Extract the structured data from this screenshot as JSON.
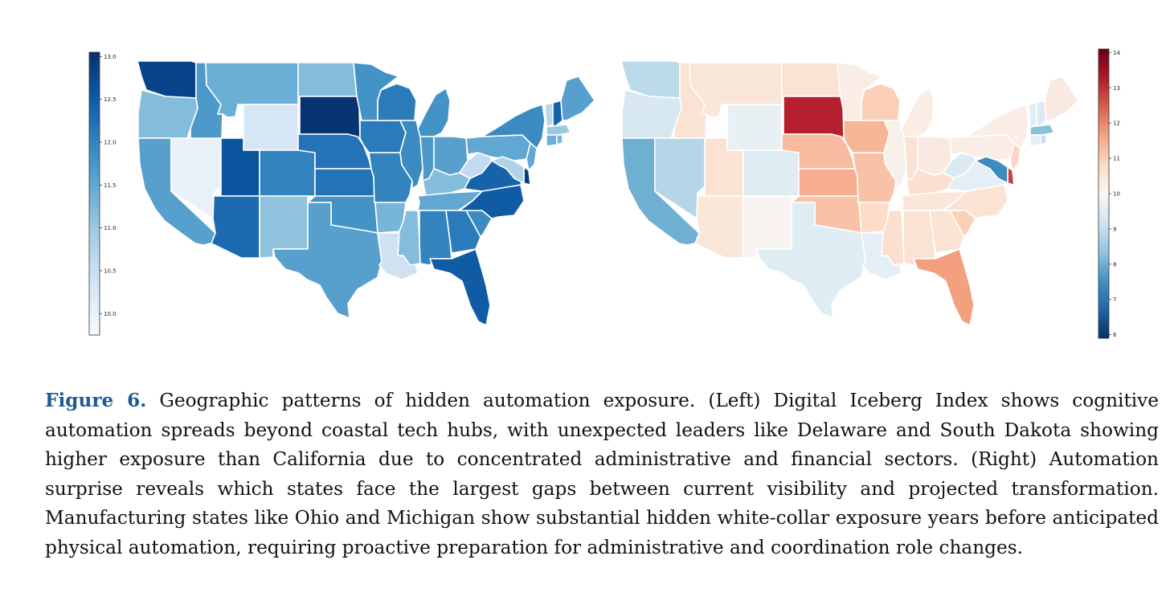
{
  "figure": {
    "label": "Figure 6.",
    "caption": "Geographic patterns of hidden automation exposure. (Left) Digital Iceberg Index shows cognitive automation spreads beyond coastal tech hubs, with unexpected leaders like Delaware and South Dakota showing higher exposure than California due to concentrated administrative and financial sectors. (Right) Automation surprise reveals which states face the largest gaps between current visibility and projected transformation. Manufacturing states like Ohio and Michigan show substantial hidden white-collar exposure years before anticipated physical automation, requiring proactive preparation for administrative and coordination role changes."
  },
  "colors": {
    "blues": [
      "#f7fbff",
      "#deebf7",
      "#c6dbef",
      "#9ecae1",
      "#6baed6",
      "#4292c6",
      "#2171b5",
      "#08519c",
      "#08306b"
    ],
    "rdbu": [
      "#053061",
      "#2166ac",
      "#4393c3",
      "#92c5de",
      "#d1e5f0",
      "#f7f7f7",
      "#fddbc7",
      "#f4a582",
      "#d6604d",
      "#b2182b",
      "#67001f"
    ],
    "caption_label": "#1f5a96"
  },
  "chart_data": [
    {
      "type": "choropleth",
      "title": "Digital Iceberg Index",
      "colormap": "Blues",
      "colorbar": {
        "vmin": 9.75,
        "vmax": 13.05,
        "ticks": [
          "10.0",
          "10.5",
          "11.0",
          "11.5",
          "12.0",
          "12.5",
          "13.0"
        ],
        "placement": "left"
      },
      "values": {
        "WA": 12.8,
        "OR": 11.2,
        "CA": 11.6,
        "NV": 10.0,
        "ID": 11.7,
        "MT": 11.4,
        "WY": 10.3,
        "UT": 12.6,
        "AZ": 12.3,
        "CO": 12.0,
        "NM": 11.1,
        "ND": 11.2,
        "SD": 13.0,
        "NE": 12.2,
        "KS": 12.2,
        "OK": 11.8,
        "TX": 11.6,
        "MN": 11.8,
        "IA": 12.1,
        "MO": 12.0,
        "AR": 11.3,
        "LA": 10.4,
        "WI": 12.1,
        "IL": 11.9,
        "MS": 11.2,
        "MI": 11.8,
        "IN": 11.7,
        "OH": 11.6,
        "KY": 11.2,
        "TN": 11.5,
        "AL": 12.0,
        "GA": 12.1,
        "FL": 12.5,
        "SC": 11.9,
        "NC": 12.5,
        "VA": 12.4,
        "WV": 10.6,
        "PA": 11.5,
        "NY": 11.9,
        "VT": 10.7,
        "NH": 12.4,
        "ME": 11.6,
        "MA": 11.0,
        "CT": 11.4,
        "NJ": 11.5,
        "DE": 12.9,
        "MD": 10.8,
        "RI": 11.3
      }
    },
    {
      "type": "choropleth",
      "title": "Automation surprise",
      "colormap": "RdBu_r",
      "colorbar": {
        "vmin": 5.9,
        "vmax": 14.1,
        "ticks": [
          "6",
          "7",
          "8",
          "9",
          "10",
          "11",
          "12",
          "13",
          "14"
        ],
        "placement": "right"
      },
      "values": {
        "WA": 8.9,
        "OR": 9.3,
        "CA": 8.0,
        "NV": 8.8,
        "ID": 10.6,
        "MT": 10.5,
        "WY": 9.7,
        "UT": 10.6,
        "AZ": 10.5,
        "CO": 9.5,
        "NM": 10.1,
        "ND": 10.6,
        "SD": 13.2,
        "NE": 11.3,
        "KS": 11.5,
        "OK": 11.2,
        "TX": 9.5,
        "MN": 10.3,
        "IA": 11.4,
        "MO": 11.2,
        "AR": 10.8,
        "LA": 9.6,
        "WI": 11.0,
        "IL": 10.2,
        "MS": 10.7,
        "MI": 10.3,
        "IN": 10.6,
        "OH": 10.4,
        "KY": 10.7,
        "TN": 10.5,
        "AL": 10.6,
        "GA": 10.6,
        "FL": 11.7,
        "SC": 11.0,
        "NC": 10.6,
        "VA": 9.6,
        "WV": 9.4,
        "PA": 10.3,
        "NY": 10.3,
        "VT": 9.5,
        "NH": 9.4,
        "ME": 10.4,
        "MA": 8.3,
        "CT": 9.6,
        "NJ": 10.9,
        "DE": 12.8,
        "MD": 7.4,
        "RI": 9.0
      }
    }
  ]
}
